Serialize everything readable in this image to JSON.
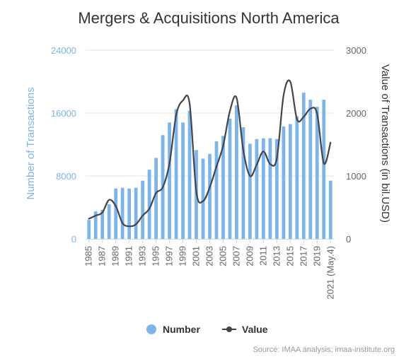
{
  "chart_data": {
    "type": "bar+line",
    "title": "Mergers & Acquisitions North America",
    "categories": [
      "1985",
      "1986",
      "1987",
      "1988",
      "1989",
      "1990",
      "1991",
      "1992",
      "1993",
      "1994",
      "1995",
      "1996",
      "1997",
      "1998",
      "1999",
      "2000",
      "2001",
      "2002",
      "2003",
      "2004",
      "2005",
      "2006",
      "2007",
      "2008",
      "2009",
      "2010",
      "2011",
      "2012",
      "2013",
      "2014",
      "2015",
      "2016",
      "2017",
      "2018",
      "2019",
      "2020",
      "2021 (May.4)"
    ],
    "x_tick_labels": [
      "1985",
      "1987",
      "1989",
      "1991",
      "1993",
      "1995",
      "1997",
      "1999",
      "2001",
      "2003",
      "2005",
      "2007",
      "2009",
      "2011",
      "2013",
      "2015",
      "2017",
      "2019",
      "2021 (May.4)"
    ],
    "series": [
      {
        "name": "Number",
        "type": "bar",
        "axis": "left",
        "color": "#7cb5ec",
        "values": [
          2400,
          3500,
          3700,
          4400,
          6400,
          6500,
          6400,
          6500,
          7400,
          8800,
          10300,
          13200,
          14800,
          16500,
          14800,
          16300,
          11300,
          10200,
          10800,
          12400,
          13100,
          15300,
          17000,
          14200,
          12100,
          12700,
          12800,
          12800,
          12700,
          14300,
          14600,
          15600,
          18600,
          17700,
          16800,
          17700,
          7400
        ]
      },
      {
        "name": "Value",
        "type": "line",
        "axis": "right",
        "color": "#434348",
        "values": [
          320,
          370,
          420,
          620,
          520,
          250,
          200,
          230,
          370,
          480,
          730,
          820,
          1200,
          1970,
          2200,
          2150,
          750,
          600,
          820,
          1150,
          1480,
          2030,
          2240,
          1410,
          1000,
          1180,
          1390,
          1190,
          1280,
          2280,
          2500,
          1900,
          1940,
          2070,
          1990,
          1200,
          1530
        ]
      }
    ],
    "y_left": {
      "label": "Number of Transactions",
      "ticks": [
        "0",
        "8000",
        "16000",
        "24000"
      ],
      "lim": [
        0,
        24000
      ]
    },
    "y_right": {
      "label": "Value of Transactions (in bil.USD)",
      "ticks": [
        "0",
        "1000",
        "2000",
        "3000"
      ],
      "lim": [
        0,
        3000
      ]
    },
    "legend": {
      "placement": "bottom-center",
      "items": [
        "Number",
        "Value"
      ]
    },
    "credit": "Source: IMAA analysis; imaa-institute.org",
    "grid": true
  },
  "colors": {
    "bar": "#7cb5ec",
    "line": "#434348",
    "axis_left": "#7cb5ec",
    "title": "#333333",
    "tick_text": "#666666",
    "grid": "#e6e6e6",
    "credit": "#999999"
  }
}
